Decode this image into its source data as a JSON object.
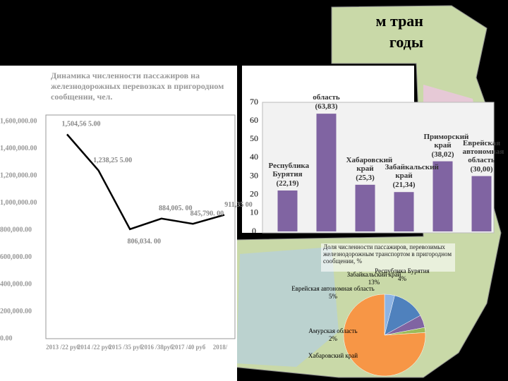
{
  "slide_title": [
    "м тран",
    "годы"
  ],
  "chart_data": [
    {
      "type": "line",
      "title": "Динамика численности пассажиров на железнодорожных перевозках в пригородном сообщении, чел.",
      "categories": [
        "2013 /22 руб",
        "2014 /22 руб",
        "2015 /35 руб",
        "2016 /38руб",
        "2017 /40 руб",
        "2018/"
      ],
      "values": [
        1504565,
        1238255,
        806034,
        884005,
        845790,
        911350
      ],
      "value_labels": [
        "1,504,56 5.00",
        "1,238,25 5.00",
        "806,034. 00",
        "884,005. 00",
        "845,790. 00",
        "911,35 00"
      ],
      "color": "#000000",
      "ylim": [
        0,
        1600000
      ],
      "yticks": [
        {
          "value": 0,
          "label": "0.00"
        },
        {
          "value": 200000,
          "label": "200,000.00"
        },
        {
          "value": 400000,
          "label": "400,000.00"
        },
        {
          "value": 600000,
          "label": "600,000.00"
        },
        {
          "value": 800000,
          "label": "800,000.00"
        },
        {
          "value": 1000000,
          "label": "1,000,000.00"
        },
        {
          "value": 1200000,
          "label": "1,200,000.00"
        },
        {
          "value": 1400000,
          "label": "1,400,000.00"
        },
        {
          "value": 1600000,
          "label": "1,600,000.00"
        }
      ]
    },
    {
      "type": "bar",
      "categories": [
        "Республика Бурятия",
        "область",
        "Хабаровский край",
        "Забайкальский край",
        "Приморский край",
        "Еврейская автономная область"
      ],
      "values": [
        22.19,
        63.83,
        25.3,
        21.34,
        38.02,
        30
      ],
      "value_labels": [
        "(22,19)",
        "(63,83)",
        "(25,3)",
        "(21,34)",
        "(38,02)",
        "(30,00)"
      ],
      "color": "#8064a2",
      "ylim": [
        0,
        70
      ],
      "yticks": [
        0,
        10,
        20,
        30,
        40,
        50,
        60,
        70
      ]
    },
    {
      "type": "pie",
      "title": "Доля численности пассажиров, перевозимых железнодорожным транспортом в пригородном сообщении, %",
      "categories": [
        "Республика Бурятия",
        "Забайкальский край",
        "Еврейская автономная область",
        "Амурская область",
        "Хабаровский край"
      ],
      "values": [
        4,
        13,
        5,
        2,
        76
      ],
      "value_labels": [
        "4%",
        "13%",
        "5%",
        "2%",
        null
      ],
      "colors": [
        "#8eb4e3",
        "#4f81bd",
        "#8064a2",
        "#9bbb59",
        "#f79646"
      ]
    }
  ]
}
